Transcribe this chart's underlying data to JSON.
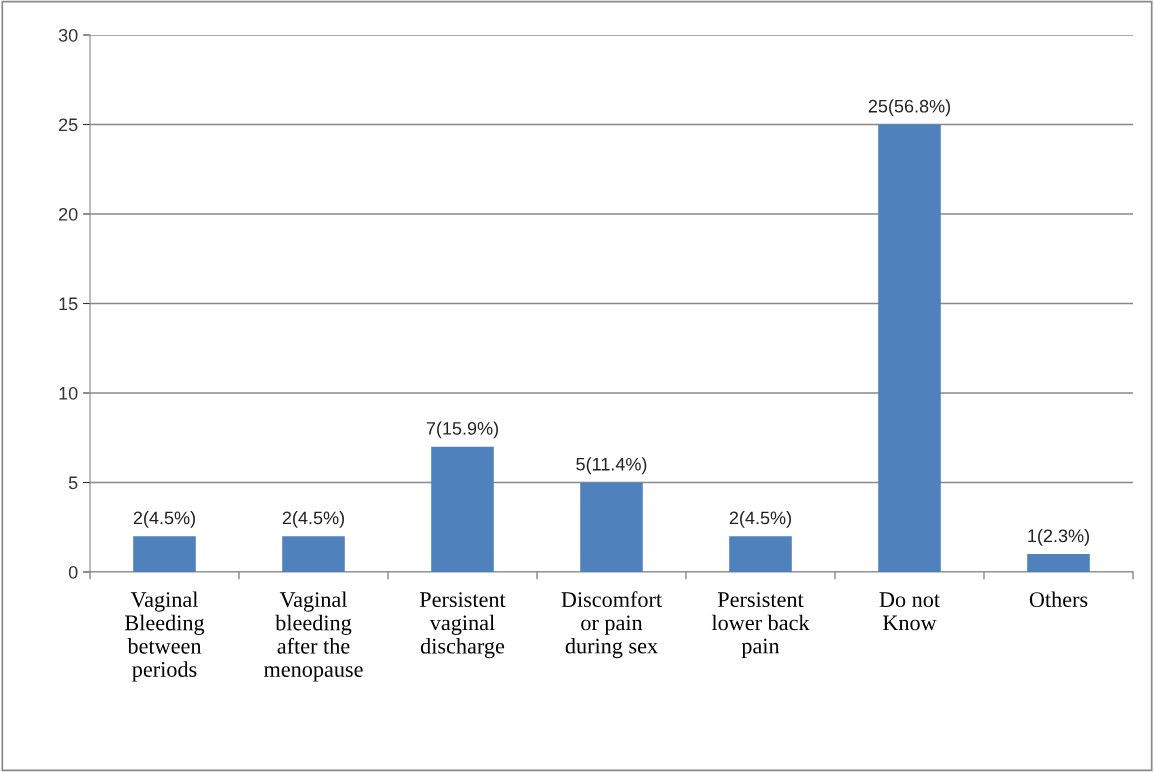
{
  "chart_data": {
    "type": "bar",
    "categories": [
      "Vaginal\nBleeding\nbetween\nperiods",
      "Vaginal\nbleeding\nafter the\nmenopause",
      "Persistent\nvaginal\ndischarge",
      "Discomfort\nor pain\nduring sex",
      "Persistent\nlower back\npain",
      "Do not\nKnow",
      "Others"
    ],
    "values": [
      2,
      2,
      7,
      5,
      2,
      25,
      1
    ],
    "value_labels": [
      "2(4.5%)",
      "2(4.5%)",
      "7(15.9%)",
      "5(11.4%)",
      "2(4.5%)",
      "25(56.8%)",
      "1(2.3%)"
    ],
    "color": "#4f81bd",
    "ylim": [
      0,
      30
    ],
    "yticks": [
      0,
      5,
      10,
      15,
      20,
      25,
      30
    ],
    "grid": "y",
    "legend": false
  }
}
